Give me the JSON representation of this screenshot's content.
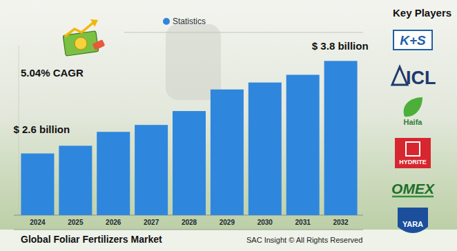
{
  "chart_data": {
    "type": "bar",
    "title": "Global Foliar Fertilizers Market",
    "source": "SAC Insight © All Rights Reserved",
    "categories": [
      "2024",
      "2025",
      "2026",
      "2027",
      "2028",
      "2029",
      "2030",
      "2031",
      "2032"
    ],
    "series": [
      {
        "name": "Statistics",
        "color": "#2f86dd",
        "values": [
          2.6,
          2.7,
          2.88,
          2.97,
          3.15,
          3.43,
          3.52,
          3.62,
          3.8
        ]
      }
    ],
    "ylim": [
      1.8,
      4.0
    ],
    "tick_labels": "x",
    "legend": "top",
    "annotations": [
      {
        "text": "$ 2.6 billion",
        "at": "2024"
      },
      {
        "text": "$ 3.8 billion",
        "at": "2032"
      },
      {
        "text": "5.04% CAGR"
      }
    ]
  },
  "key_players": {
    "title": "Key Players",
    "names": [
      "K+S",
      "ICL",
      "Haifa",
      "HYDRITE",
      "OMEX",
      "YARA"
    ]
  }
}
